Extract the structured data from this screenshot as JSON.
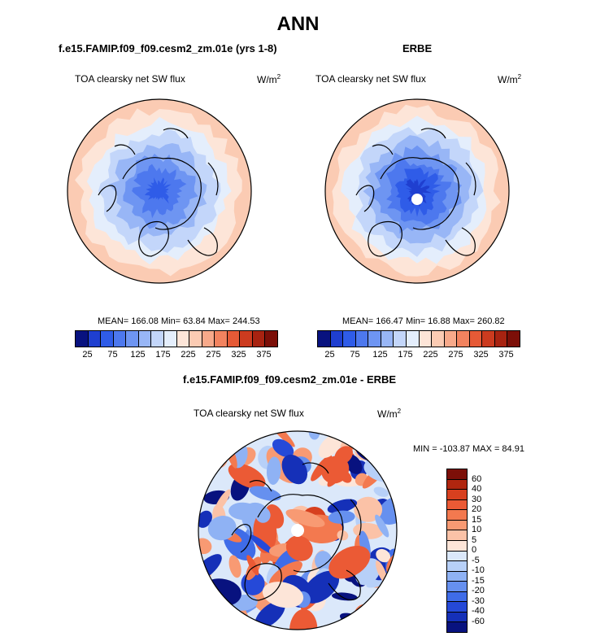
{
  "main_title": "ANN",
  "panels": [
    {
      "title": "f.e15.FAMIP.f09_f09.cesm2_zm.01e (yrs 1-8)",
      "variable": "TOA clearsky net SW flux",
      "units": "W/m",
      "units_exp": "2",
      "stats": "MEAN= 166.08  Min=  63.84  Max= 244.53"
    },
    {
      "title": "ERBE",
      "variable": "TOA clearsky net SW flux",
      "units": "W/m",
      "units_exp": "2",
      "stats": "MEAN= 166.47  Min=  16.88  Max= 260.82"
    },
    {
      "title": "f.e15.FAMIP.f09_f09.cesm2_zm.01e - ERBE",
      "variable": "TOA clearsky net SW flux",
      "units": "W/m",
      "units_exp": "2",
      "stats": "MIN = -103.87 MAX =  84.91"
    }
  ],
  "chart_data": [
    {
      "type": "heatmap",
      "projection": "north-polar-stereographic",
      "title": "f.e15.FAMIP.f09_f09.cesm2_zm.01e (yrs 1-8)",
      "variable": "TOA clearsky net SW flux",
      "units": "W/m2",
      "mean": 166.08,
      "min": 63.84,
      "max": 244.53,
      "colorbar_ticks": [
        "25",
        "75",
        "125",
        "175",
        "225",
        "275",
        "325",
        "375"
      ],
      "colorbar_levels": [
        25,
        50,
        75,
        100,
        125,
        150,
        175,
        200,
        225,
        250,
        275,
        300,
        325,
        350,
        375
      ],
      "colorbar_colors": [
        "#08127f",
        "#1f3fd0",
        "#2f5ce8",
        "#4d78ee",
        "#6e95f2",
        "#98b6f6",
        "#c3d6fa",
        "#e4eefc",
        "#fde5d8",
        "#fbcbb3",
        "#f7a98a",
        "#f2835f",
        "#e65a36",
        "#cc3b1f",
        "#a82311",
        "#7c0f08"
      ],
      "field_colors": [
        "#2f5ce8",
        "#4d78ee",
        "#6e95f2",
        "#98b6f6",
        "#c3d6fa",
        "#e4eefc",
        "#fde5d8",
        "#fbcbb3"
      ]
    },
    {
      "type": "heatmap",
      "projection": "north-polar-stereographic",
      "title": "ERBE",
      "variable": "TOA clearsky net SW flux",
      "units": "W/m2",
      "mean": 166.47,
      "min": 16.88,
      "max": 260.82,
      "colorbar_ticks": [
        "25",
        "75",
        "125",
        "175",
        "225",
        "275",
        "325",
        "375"
      ],
      "colorbar_levels": [
        25,
        50,
        75,
        100,
        125,
        150,
        175,
        200,
        225,
        250,
        275,
        300,
        325,
        350,
        375
      ],
      "colorbar_colors": [
        "#08127f",
        "#1f3fd0",
        "#2f5ce8",
        "#4d78ee",
        "#6e95f2",
        "#98b6f6",
        "#c3d6fa",
        "#e4eefc",
        "#fde5d8",
        "#fbcbb3",
        "#f7a98a",
        "#f2835f",
        "#e65a36",
        "#cc3b1f",
        "#a82311",
        "#7c0f08"
      ],
      "field_colors": [
        "#1f3fd0",
        "#2f5ce8",
        "#4d78ee",
        "#6e95f2",
        "#98b6f6",
        "#c3d6fa",
        "#e4eefc",
        "#fde5d8",
        "#fbcbb3"
      ]
    },
    {
      "type": "heatmap",
      "projection": "north-polar-stereographic",
      "title": "f.e15.FAMIP.f09_f09.cesm2_zm.01e - ERBE",
      "variable": "TOA clearsky net SW flux",
      "units": "W/m2",
      "min": -103.87,
      "max": 84.91,
      "colorbar_ticks": [
        "60",
        "40",
        "30",
        "20",
        "15",
        "10",
        "5",
        "0",
        "-5",
        "-10",
        "-15",
        "-20",
        "-30",
        "-40",
        "-60"
      ],
      "colorbar_levels": [
        -60,
        -40,
        -30,
        -20,
        -15,
        -10,
        -5,
        0,
        5,
        10,
        15,
        20,
        30,
        40,
        60
      ],
      "colorbar_colors": [
        "#7c0f08",
        "#b0260f",
        "#d7401f",
        "#eb5a35",
        "#f3794f",
        "#f89a73",
        "#fbc2a7",
        "#fde5d8",
        "#dbe8fa",
        "#b7d0f8",
        "#8fb2f4",
        "#6690ef",
        "#3f6ce8",
        "#2549d8",
        "#1530b8",
        "#08127f"
      ],
      "field_colors": [
        "#08127f",
        "#1530b8",
        "#2549d8",
        "#3f6ce8",
        "#6690ef",
        "#8fb2f4",
        "#b7d0f8",
        "#dbe8fa",
        "#fde5d8",
        "#fbc2a7",
        "#f89a73",
        "#f3794f",
        "#eb5a35",
        "#d7401f"
      ]
    }
  ]
}
